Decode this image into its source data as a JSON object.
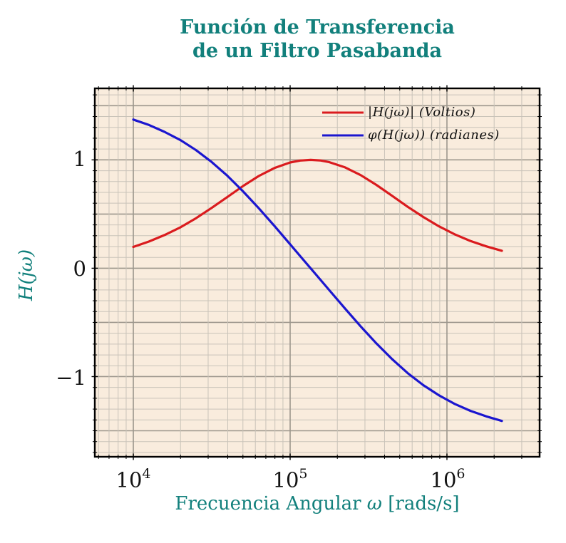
{
  "title": {
    "line1": "Función de Transferencia",
    "line2": "de un Filtro Pasabanda"
  },
  "colors": {
    "teal": "#12807c",
    "red": "#da1b1e",
    "blue": "#1b16cf",
    "plot_bg": "#f9ecdd",
    "grid_minor": "#c9c3b9",
    "grid_major": "#9d978d",
    "axis_border": "#000000",
    "tick_text": "#131313"
  },
  "chart_data": {
    "type": "line",
    "x_scale": "log",
    "title": "Función de Transferencia de un Filtro Pasabanda",
    "xlabel": "Frecuencia Angular ω [rads/s]",
    "xlabel_parts": {
      "pre": "Frecuencia Angular ",
      "omega": "ω",
      "post": " [rads/s]"
    },
    "ylabel": "H(jω)",
    "xlim": [
      5680,
      3900000
    ],
    "ylim": [
      -1.74,
      1.66
    ],
    "grid": "both",
    "legend_position": "top-right inside, no frame",
    "x_ticks": [
      {
        "value": 10000,
        "base": "10",
        "exp": "4"
      },
      {
        "value": 100000,
        "base": "10",
        "exp": "5"
      },
      {
        "value": 1000000,
        "base": "10",
        "exp": "6"
      }
    ],
    "y_ticks": [
      {
        "value": 1,
        "label": "1"
      },
      {
        "value": 0,
        "label": "0"
      },
      {
        "value": -1,
        "label": "−1"
      }
    ],
    "y_minor_step": 0.1,
    "y_major_step": 0.5,
    "x": [
      10000,
      12600,
      15800,
      20000,
      25100,
      31600,
      39800,
      50100,
      63100,
      79400,
      100000,
      116000,
      135000,
      155000,
      178000,
      224000,
      282000,
      355000,
      447000,
      562000,
      708000,
      891000,
      1120000,
      1410000,
      1780000,
      2240000
    ],
    "series": [
      {
        "name": "|H(jω)| (Voltios)",
        "color_key": "red",
        "values": [
          0.197,
          0.247,
          0.306,
          0.378,
          0.462,
          0.557,
          0.658,
          0.759,
          0.851,
          0.925,
          0.976,
          0.994,
          1.0,
          0.995,
          0.979,
          0.931,
          0.859,
          0.769,
          0.668,
          0.567,
          0.472,
          0.386,
          0.313,
          0.252,
          0.202,
          0.161
        ]
      },
      {
        "name": "φ(H(jω)) (radianes)",
        "color_key": "blue",
        "values": [
          1.372,
          1.322,
          1.259,
          1.182,
          1.09,
          0.98,
          0.853,
          0.709,
          0.554,
          0.39,
          0.221,
          0.111,
          0.0,
          -0.102,
          -0.204,
          -0.373,
          -0.538,
          -0.694,
          -0.839,
          -0.968,
          -1.08,
          -1.174,
          -1.252,
          -1.316,
          -1.367,
          -1.409
        ]
      }
    ]
  }
}
